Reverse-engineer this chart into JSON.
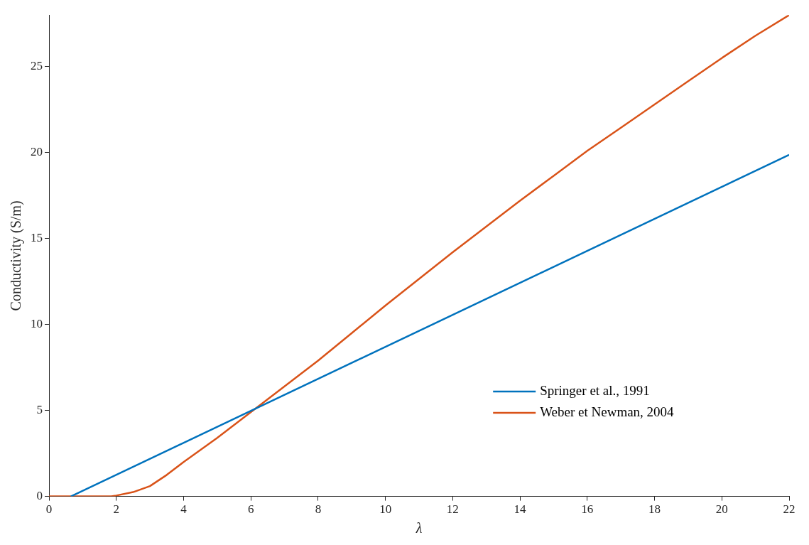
{
  "chart_data": {
    "type": "line",
    "xlabel": "λ",
    "ylabel": "Conductivity (S/m)",
    "xlim": [
      0,
      22
    ],
    "ylim": [
      0,
      28
    ],
    "xticks": [
      0,
      2,
      4,
      6,
      8,
      10,
      12,
      14,
      16,
      18,
      20,
      22
    ],
    "yticks": [
      0,
      5,
      10,
      15,
      20,
      25
    ],
    "grid": false,
    "legend": "bottom right",
    "marker": "none",
    "line_style": "solid",
    "series": [
      {
        "name": "Springer et al., 1991",
        "color": "#0072bd",
        "x": [
          0.65,
          22
        ],
        "values": [
          0,
          19.87
        ]
      },
      {
        "name": "Weber et Newman, 2004",
        "color": "#d95319",
        "x": [
          0,
          1.85,
          2,
          2.5,
          3,
          3.5,
          4,
          5,
          6,
          7,
          8,
          9,
          10,
          11,
          12,
          13,
          14,
          15,
          16,
          17,
          18,
          19,
          20,
          21,
          22
        ],
        "values": [
          0,
          0,
          0.05,
          0.25,
          0.6,
          1.25,
          2.0,
          3.4,
          4.9,
          6.4,
          7.9,
          9.5,
          11.1,
          12.65,
          14.2,
          15.7,
          17.2,
          18.65,
          20.1,
          21.45,
          22.8,
          24.15,
          25.5,
          26.8,
          28.0
        ]
      }
    ]
  }
}
